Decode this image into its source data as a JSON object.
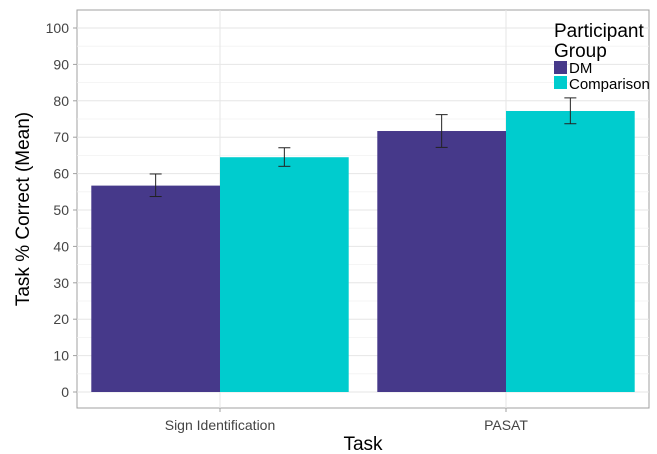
{
  "chart_data": {
    "type": "bar",
    "title": "",
    "xlabel": "Task",
    "ylabel": "Task % Correct (Mean)",
    "categories": [
      "Sign Identification",
      "PASAT"
    ],
    "ylim": [
      -5,
      105
    ],
    "yticks": [
      0,
      10,
      20,
      30,
      40,
      50,
      60,
      70,
      80,
      90,
      100
    ],
    "grid": true,
    "legend": {
      "title_lines": [
        "Participant",
        "Group"
      ],
      "placement": "top-right"
    },
    "series": [
      {
        "name": "DM",
        "color": "#46398a",
        "values": [
          56.7,
          71.7
        ],
        "error_low": [
          53.7,
          67.2
        ],
        "error_high": [
          59.9,
          76.2
        ]
      },
      {
        "name": "Comparison",
        "color": "#00ccce",
        "values": [
          64.5,
          77.2
        ],
        "error_low": [
          62.0,
          73.7
        ],
        "error_high": [
          67.1,
          80.8
        ]
      }
    ]
  }
}
